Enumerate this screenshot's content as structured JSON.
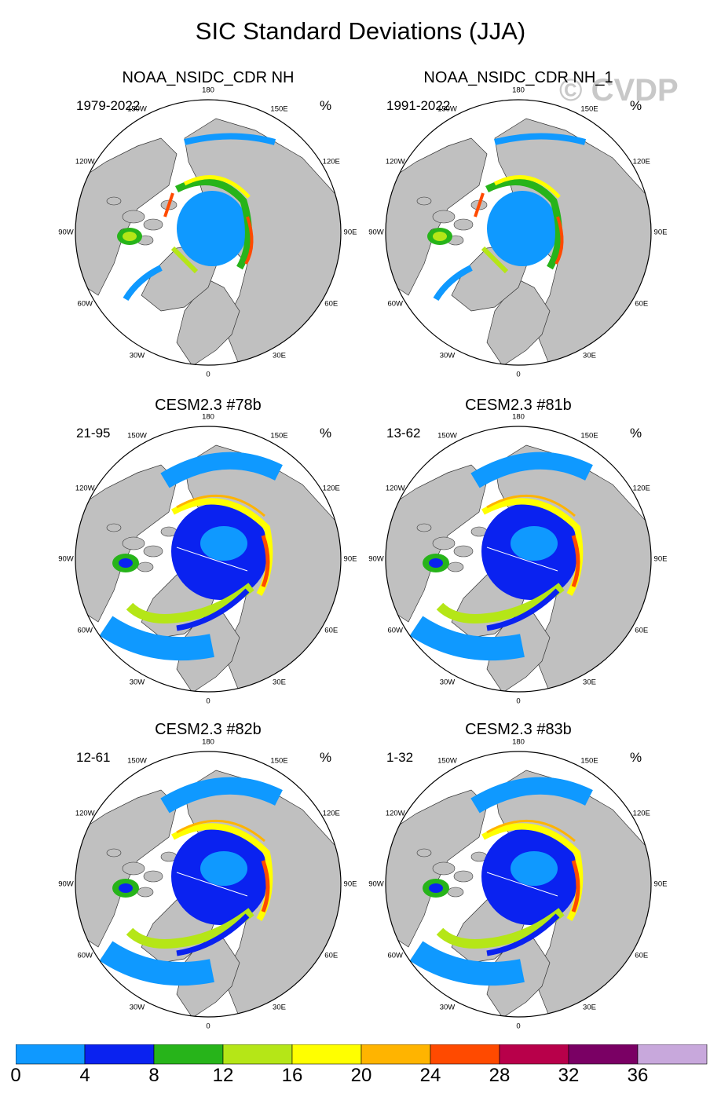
{
  "figure": {
    "title": "SIC Standard Deviations (JJA)",
    "watermark": "© CVDP"
  },
  "panels": [
    {
      "title": "NOAA_NSIDC_CDR NH",
      "period": "1979-2022",
      "unit": "%",
      "variant": "obs"
    },
    {
      "title": "NOAA_NSIDC_CDR NH_1",
      "period": "1991-2022",
      "unit": "%",
      "variant": "obs"
    },
    {
      "title": "CESM2.3 #78b",
      "period": "21-95",
      "unit": "%",
      "variant": "model"
    },
    {
      "title": "CESM2.3 #81b",
      "period": "13-62",
      "unit": "%",
      "variant": "model"
    },
    {
      "title": "CESM2.3 #82b",
      "period": "12-61",
      "unit": "%",
      "variant": "model"
    },
    {
      "title": "CESM2.3 #83b",
      "period": "1-32",
      "unit": "%",
      "variant": "model"
    }
  ],
  "longitude_labels": [
    "180",
    "150E",
    "120E",
    "90E",
    "60E",
    "30E",
    "0",
    "30W",
    "60W",
    "90W",
    "120W",
    "150W"
  ],
  "colorbar": {
    "ticks": [
      "0",
      "4",
      "8",
      "12",
      "16",
      "20",
      "24",
      "28",
      "32",
      "36"
    ],
    "colors": [
      "#0f99ff",
      "#0a22f0",
      "#27b41a",
      "#b5e617",
      "#ffff00",
      "#ffb400",
      "#ff4a00",
      "#b8004a",
      "#7a0064",
      "#c8a8dc"
    ]
  },
  "colors": {
    "land": "#c0c0c0",
    "ocean": "#ffffff"
  }
}
